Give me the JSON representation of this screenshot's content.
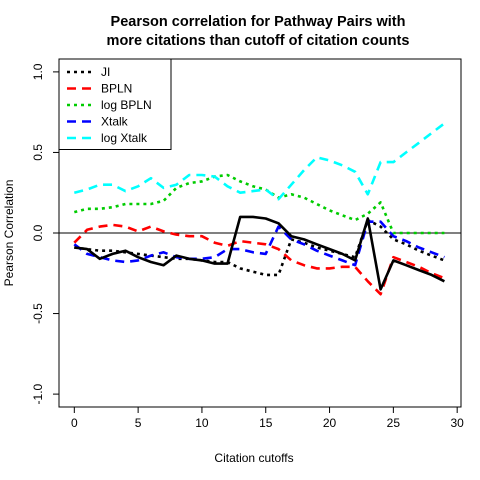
{
  "chart_data": {
    "type": "line",
    "title_lines": [
      "Pearson correlation for Pathway Pairs with",
      "more citations than cutoff of citation counts"
    ],
    "xlabel": "Citation cutoffs",
    "ylabel": "Pearson Correlation",
    "xlim": [
      -1.2,
      30.3
    ],
    "ylim": [
      -1.08,
      1.08
    ],
    "x_ticks": [
      0,
      5,
      10,
      15,
      20,
      25,
      30
    ],
    "x_tick_labels": [
      "0",
      "5",
      "10",
      "15",
      "20",
      "25",
      "30"
    ],
    "y_ticks": [
      -1.0,
      -0.5,
      0.0,
      0.5,
      1.0
    ],
    "y_tick_labels": [
      "-1.0",
      "-0.5",
      "0.0",
      "0.5",
      "1.0"
    ],
    "reference_line_y": 0,
    "legend_position": "top-left",
    "series": [
      {
        "name": "JI",
        "color": "#000000",
        "style": "dotted",
        "x": [
          0,
          1,
          2,
          3,
          4,
          5,
          6,
          7,
          8,
          9,
          10,
          11,
          12,
          13,
          14,
          15,
          16,
          17,
          18,
          19,
          20,
          21,
          22,
          23,
          24,
          25,
          26,
          27,
          28,
          29
        ],
        "y": [
          -0.09,
          -0.1,
          -0.11,
          -0.11,
          -0.12,
          -0.13,
          -0.14,
          -0.15,
          -0.16,
          -0.16,
          -0.17,
          -0.18,
          -0.18,
          -0.22,
          -0.24,
          -0.26,
          -0.26,
          -0.04,
          -0.06,
          -0.09,
          -0.11,
          -0.13,
          -0.15,
          0.08,
          0.04,
          -0.04,
          -0.07,
          -0.11,
          -0.14,
          -0.17
        ]
      },
      {
        "name": "BPLN",
        "color": "#ff0000",
        "style": "dashed",
        "x": [
          0,
          1,
          2,
          3,
          4,
          5,
          6,
          7,
          8,
          9,
          10,
          11,
          12,
          13,
          14,
          15,
          16,
          17,
          18,
          19,
          20,
          21,
          22,
          23,
          24,
          25,
          26,
          27,
          28,
          29
        ],
        "y": [
          -0.06,
          0.02,
          0.04,
          0.05,
          0.04,
          0.01,
          0.04,
          0.01,
          -0.01,
          -0.02,
          -0.02,
          -0.06,
          -0.08,
          -0.05,
          -0.06,
          -0.07,
          -0.1,
          -0.17,
          -0.2,
          -0.22,
          -0.22,
          -0.21,
          -0.21,
          -0.3,
          -0.38,
          -0.15,
          -0.18,
          -0.21,
          -0.25,
          -0.28
        ]
      },
      {
        "name": "log BPLN",
        "color": "#00cc00",
        "style": "dotted",
        "x": [
          0,
          1,
          2,
          3,
          4,
          5,
          6,
          7,
          8,
          9,
          10,
          11,
          12,
          13,
          14,
          15,
          16,
          17,
          18,
          19,
          20,
          21,
          22,
          23,
          24,
          25,
          26,
          27,
          28,
          29
        ],
        "y": [
          0.13,
          0.15,
          0.15,
          0.16,
          0.18,
          0.18,
          0.18,
          0.2,
          0.28,
          0.31,
          0.32,
          0.35,
          0.36,
          0.32,
          0.29,
          0.27,
          0.22,
          0.24,
          0.22,
          0.18,
          0.14,
          0.11,
          0.08,
          0.12,
          0.19,
          0.0,
          0.0,
          0.0,
          0.0,
          0.0
        ]
      },
      {
        "name": "Xtalk",
        "color": "#0000ff",
        "style": "dashed",
        "x": [
          0,
          1,
          2,
          3,
          4,
          5,
          6,
          7,
          8,
          9,
          10,
          11,
          12,
          13,
          14,
          15,
          16,
          17,
          18,
          19,
          20,
          21,
          22,
          23,
          24,
          25,
          26,
          27,
          28,
          29
        ],
        "y": [
          -0.07,
          -0.13,
          -0.15,
          -0.17,
          -0.18,
          -0.17,
          -0.14,
          -0.12,
          -0.15,
          -0.16,
          -0.16,
          -0.15,
          -0.1,
          -0.1,
          -0.12,
          -0.13,
          0.04,
          -0.04,
          -0.07,
          -0.11,
          -0.14,
          -0.17,
          -0.2,
          0.07,
          0.07,
          -0.02,
          -0.05,
          -0.09,
          -0.12,
          -0.15
        ]
      },
      {
        "name": "log Xtalk",
        "color": "#00ffff",
        "style": "dashed",
        "x": [
          0,
          1,
          2,
          3,
          4,
          5,
          6,
          7,
          8,
          9,
          10,
          11,
          12,
          13,
          14,
          15,
          16,
          17,
          18,
          19,
          20,
          21,
          22,
          23,
          24,
          25,
          26,
          27,
          28,
          29
        ],
        "y": [
          0.25,
          0.27,
          0.3,
          0.3,
          0.26,
          0.29,
          0.34,
          0.28,
          0.3,
          0.36,
          0.36,
          0.35,
          0.29,
          0.25,
          0.26,
          0.27,
          0.21,
          0.3,
          0.39,
          0.47,
          0.45,
          0.42,
          0.38,
          0.24,
          0.44,
          0.44,
          0.5,
          0.56,
          0.62,
          0.68
        ]
      },
      {
        "name": "",
        "color": "#000000",
        "style": "solid",
        "x": [
          0,
          1,
          2,
          3,
          4,
          5,
          6,
          7,
          8,
          9,
          10,
          11,
          12,
          13,
          14,
          15,
          16,
          17,
          18,
          19,
          20,
          21,
          22,
          23,
          24,
          25,
          26,
          27,
          28,
          29
        ],
        "y": [
          -0.09,
          -0.1,
          -0.16,
          -0.13,
          -0.11,
          -0.15,
          -0.18,
          -0.2,
          -0.14,
          -0.16,
          -0.17,
          -0.19,
          -0.19,
          0.1,
          0.1,
          0.09,
          0.06,
          -0.02,
          -0.04,
          -0.07,
          -0.1,
          -0.13,
          -0.17,
          0.09,
          -0.35,
          -0.17,
          -0.2,
          -0.23,
          -0.26,
          -0.3
        ]
      }
    ]
  }
}
